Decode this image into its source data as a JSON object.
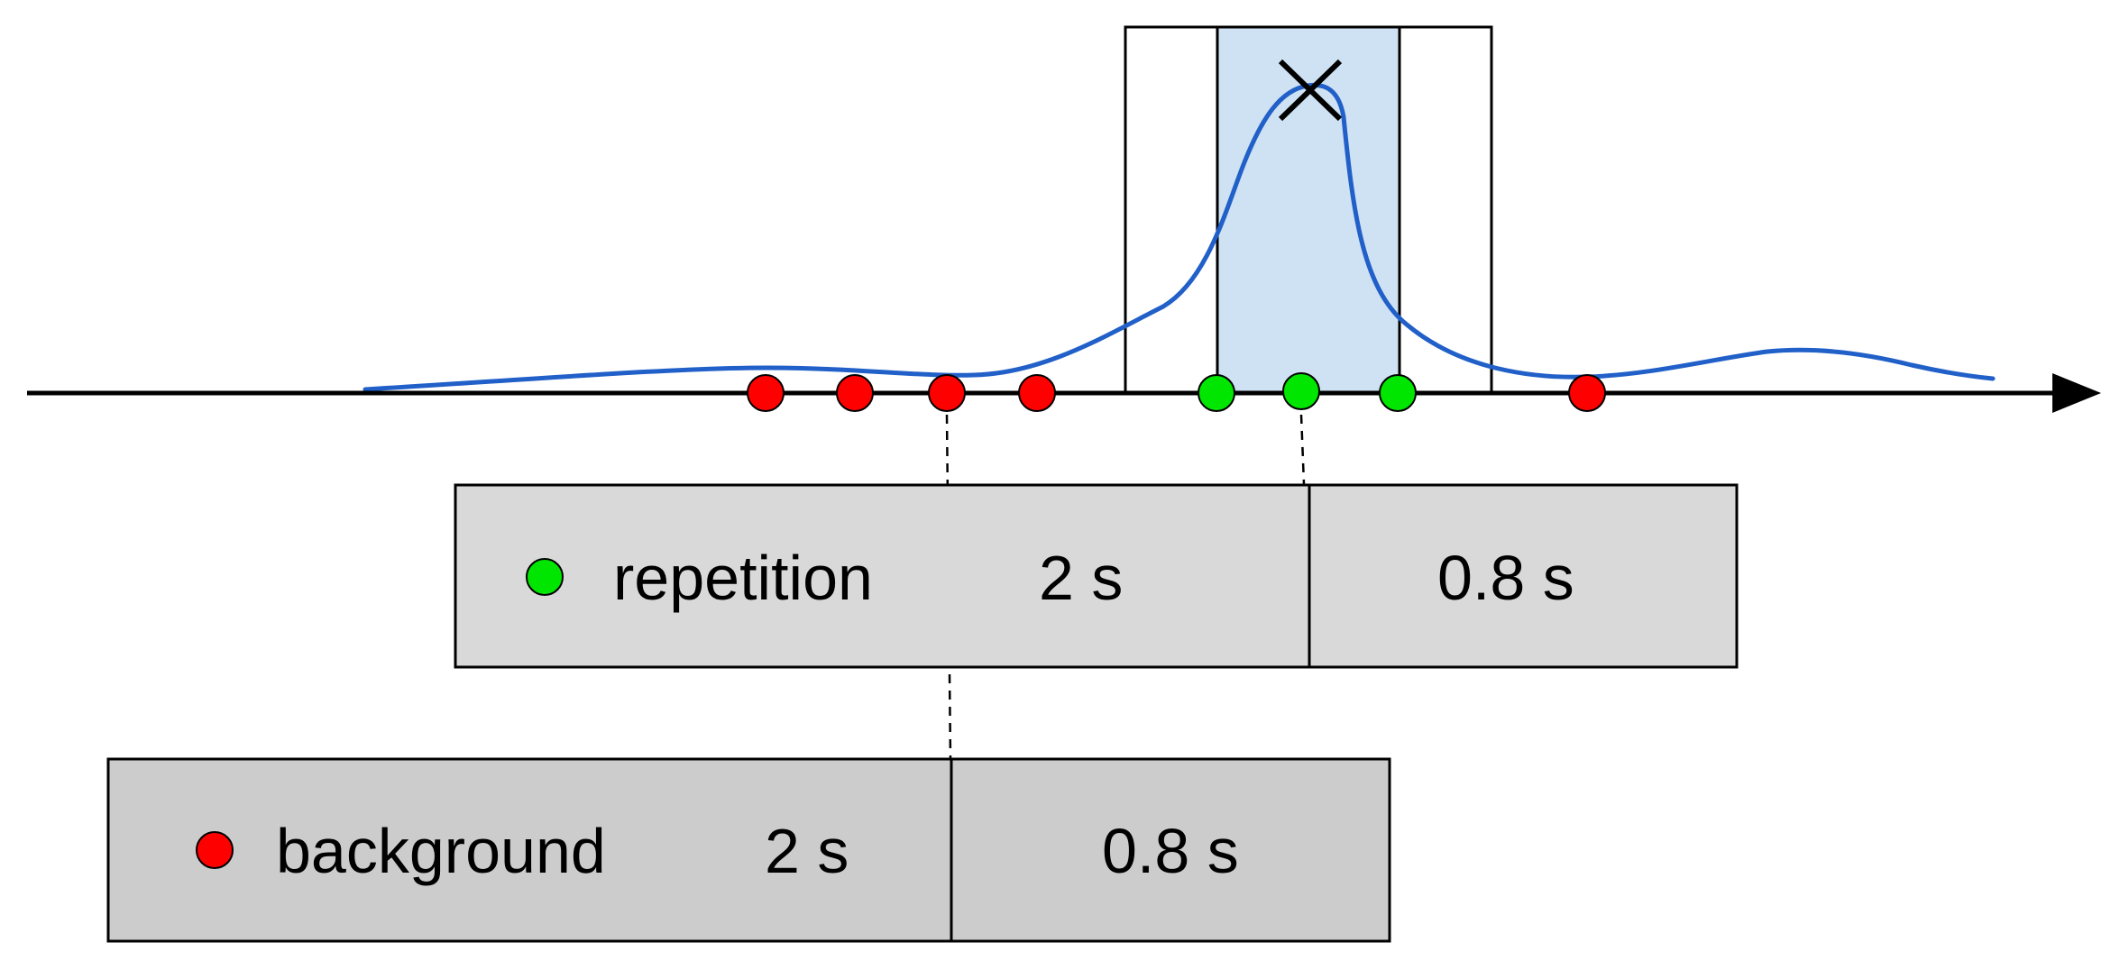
{
  "colors": {
    "background_marker": "#ff0000",
    "repetition_marker": "#00e600",
    "density_curve": "#2160c8",
    "window_fill": "#cfe2f3",
    "segment_fill": "#d9d9d9",
    "segment_fill_dark": "#cccccc"
  },
  "icons": {
    "peak_marker": "x-mark-icon",
    "axis_arrow": "arrow-right-icon"
  },
  "timeline": {
    "background_events": 5,
    "repetition_events": 3
  },
  "repetition_row": {
    "label": "repetition",
    "duration_1": "2 s",
    "duration_2": "0.8 s"
  },
  "background_row": {
    "label": "background",
    "duration_1": "2 s",
    "duration_2": "0.8 s"
  }
}
